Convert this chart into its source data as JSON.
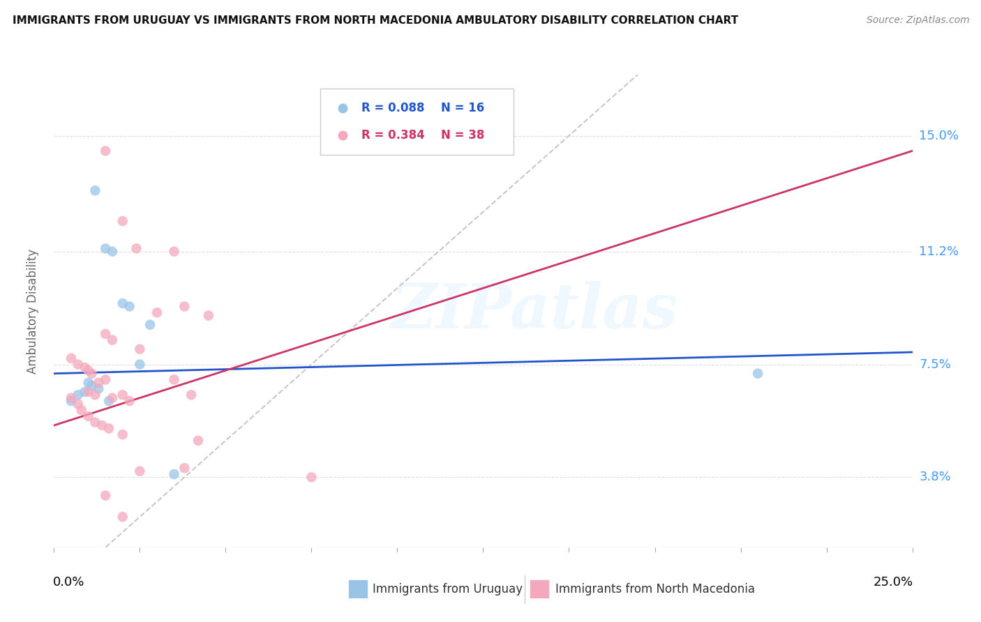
{
  "title": "IMMIGRANTS FROM URUGUAY VS IMMIGRANTS FROM NORTH MACEDONIA AMBULATORY DISABILITY CORRELATION CHART",
  "source": "Source: ZipAtlas.com",
  "ylabel": "Ambulatory Disability",
  "ytick_values": [
    3.8,
    7.5,
    11.2,
    15.0
  ],
  "xlim": [
    0.0,
    25.0
  ],
  "ylim": [
    1.5,
    17.0
  ],
  "watermark": "ZIPatlas",
  "r_blue": "0.088",
  "n_blue": "16",
  "r_pink": "0.384",
  "n_pink": "38",
  "blue_scatter": "#99c4e8",
  "pink_scatter": "#f4a8bb",
  "trend_blue": "#2255cc",
  "trend_pink": "#cc3366",
  "diagonal_color": "#c8c8c8",
  "grid_color": "#dedede",
  "right_axis_color": "#4499ff",
  "blue_line_x": [
    0.0,
    25.0
  ],
  "blue_line_y": [
    7.2,
    7.9
  ],
  "pink_line_x": [
    0.0,
    25.0
  ],
  "pink_line_y": [
    5.5,
    14.5
  ],
  "uruguay_x": [
    1.2,
    1.5,
    1.7,
    2.0,
    2.2,
    2.5,
    2.8,
    0.5,
    0.7,
    0.9,
    1.0,
    1.1,
    1.3,
    1.6,
    3.5,
    20.5
  ],
  "uruguay_y": [
    13.2,
    11.3,
    11.2,
    9.5,
    9.4,
    7.5,
    8.8,
    6.3,
    6.5,
    6.6,
    6.9,
    6.8,
    6.7,
    6.3,
    3.9,
    7.2
  ],
  "macedonia_x": [
    1.5,
    2.0,
    2.4,
    3.5,
    3.8,
    4.5,
    1.5,
    1.7,
    2.5,
    3.0,
    3.5,
    4.0,
    4.2,
    0.5,
    0.7,
    0.9,
    1.0,
    1.1,
    1.3,
    1.5,
    1.7,
    2.0,
    2.2,
    0.5,
    0.7,
    0.8,
    1.0,
    1.2,
    1.4,
    1.6,
    2.0,
    1.0,
    1.2,
    1.5,
    2.0,
    2.5,
    7.5,
    3.8
  ],
  "macedonia_y": [
    14.5,
    12.2,
    11.3,
    11.2,
    9.4,
    9.1,
    8.5,
    8.3,
    8.0,
    9.2,
    7.0,
    6.5,
    5.0,
    7.7,
    7.5,
    7.4,
    7.3,
    7.2,
    6.9,
    7.0,
    6.4,
    6.5,
    6.3,
    6.4,
    6.2,
    6.0,
    5.8,
    5.6,
    5.5,
    5.4,
    5.2,
    6.6,
    6.5,
    3.2,
    2.5,
    4.0,
    3.8,
    4.1
  ]
}
